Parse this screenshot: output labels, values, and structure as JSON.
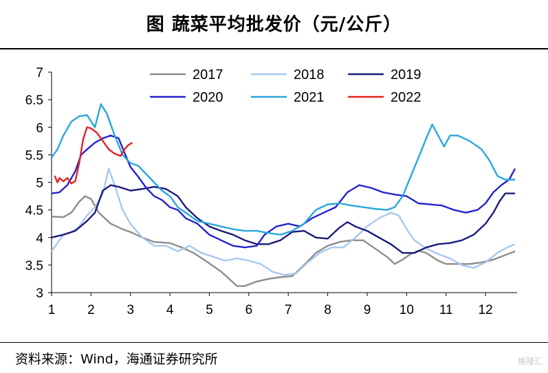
{
  "header": {
    "title": "图  蔬菜平均批发价（元/公斤）"
  },
  "footer": {
    "source": "资料来源：Wind，海通证券研究所",
    "watermark": "格隆汇"
  },
  "chart_data": {
    "type": "line",
    "title": "图  蔬菜平均批发价（元/公斤）",
    "xlabel": "",
    "ylabel": "",
    "x_ticks": [
      "1",
      "2",
      "3",
      "4",
      "5",
      "6",
      "7",
      "8",
      "9",
      "10",
      "11",
      "12"
    ],
    "y_ticks": [
      "3",
      "3.5",
      "4",
      "4.5",
      "5",
      "5.5",
      "6",
      "6.5",
      "7"
    ],
    "xlim": [
      1,
      12.8
    ],
    "ylim": [
      3,
      7
    ],
    "grid": false,
    "legend_position": "top",
    "series": [
      {
        "name": "2017",
        "color": "#8c8c8c",
        "points": [
          [
            1.0,
            4.38
          ],
          [
            1.3,
            4.37
          ],
          [
            1.5,
            4.45
          ],
          [
            1.7,
            4.65
          ],
          [
            1.85,
            4.75
          ],
          [
            2.0,
            4.7
          ],
          [
            2.2,
            4.45
          ],
          [
            2.5,
            4.25
          ],
          [
            2.8,
            4.15
          ],
          [
            3.0,
            4.1
          ],
          [
            3.3,
            4.0
          ],
          [
            3.6,
            3.92
          ],
          [
            4.0,
            3.9
          ],
          [
            4.3,
            3.82
          ],
          [
            4.6,
            3.72
          ],
          [
            4.9,
            3.58
          ],
          [
            5.1,
            3.48
          ],
          [
            5.3,
            3.38
          ],
          [
            5.5,
            3.25
          ],
          [
            5.7,
            3.12
          ],
          [
            5.9,
            3.12
          ],
          [
            6.2,
            3.2
          ],
          [
            6.5,
            3.25
          ],
          [
            6.8,
            3.28
          ],
          [
            7.1,
            3.3
          ],
          [
            7.4,
            3.5
          ],
          [
            7.7,
            3.72
          ],
          [
            8.0,
            3.85
          ],
          [
            8.3,
            3.92
          ],
          [
            8.6,
            3.95
          ],
          [
            8.9,
            3.95
          ],
          [
            9.1,
            3.85
          ],
          [
            9.3,
            3.75
          ],
          [
            9.5,
            3.65
          ],
          [
            9.7,
            3.52
          ],
          [
            9.9,
            3.6
          ],
          [
            10.1,
            3.7
          ],
          [
            10.3,
            3.76
          ],
          [
            10.5,
            3.72
          ],
          [
            10.8,
            3.58
          ],
          [
            11.0,
            3.52
          ],
          [
            11.3,
            3.52
          ],
          [
            11.6,
            3.52
          ],
          [
            11.9,
            3.55
          ],
          [
            12.2,
            3.6
          ],
          [
            12.5,
            3.68
          ],
          [
            12.75,
            3.75
          ]
        ]
      },
      {
        "name": "2018",
        "color": "#a6c8ef",
        "points": [
          [
            1.0,
            3.75
          ],
          [
            1.1,
            3.85
          ],
          [
            1.3,
            4.05
          ],
          [
            1.5,
            4.1
          ],
          [
            1.7,
            4.2
          ],
          [
            1.9,
            4.4
          ],
          [
            2.1,
            4.55
          ],
          [
            2.3,
            4.8
          ],
          [
            2.45,
            5.25
          ],
          [
            2.6,
            4.95
          ],
          [
            2.8,
            4.5
          ],
          [
            3.0,
            4.25
          ],
          [
            3.3,
            4.0
          ],
          [
            3.6,
            3.85
          ],
          [
            3.9,
            3.85
          ],
          [
            4.2,
            3.75
          ],
          [
            4.5,
            3.85
          ],
          [
            4.8,
            3.72
          ],
          [
            5.1,
            3.65
          ],
          [
            5.4,
            3.58
          ],
          [
            5.7,
            3.62
          ],
          [
            6.0,
            3.58
          ],
          [
            6.3,
            3.52
          ],
          [
            6.6,
            3.38
          ],
          [
            6.9,
            3.32
          ],
          [
            7.2,
            3.35
          ],
          [
            7.5,
            3.55
          ],
          [
            7.8,
            3.72
          ],
          [
            8.1,
            3.82
          ],
          [
            8.4,
            3.82
          ],
          [
            8.7,
            4.0
          ],
          [
            9.0,
            4.2
          ],
          [
            9.3,
            4.35
          ],
          [
            9.6,
            4.45
          ],
          [
            9.8,
            4.4
          ],
          [
            10.0,
            4.15
          ],
          [
            10.2,
            3.95
          ],
          [
            10.5,
            3.8
          ],
          [
            10.8,
            3.7
          ],
          [
            11.1,
            3.62
          ],
          [
            11.4,
            3.5
          ],
          [
            11.7,
            3.45
          ],
          [
            12.0,
            3.55
          ],
          [
            12.3,
            3.72
          ],
          [
            12.55,
            3.82
          ],
          [
            12.75,
            3.88
          ]
        ]
      },
      {
        "name": "2019",
        "color": "#1a1a7a",
        "points": [
          [
            1.0,
            4.0
          ],
          [
            1.3,
            4.05
          ],
          [
            1.6,
            4.12
          ],
          [
            1.9,
            4.3
          ],
          [
            2.1,
            4.45
          ],
          [
            2.3,
            4.85
          ],
          [
            2.5,
            4.95
          ],
          [
            2.7,
            4.92
          ],
          [
            3.0,
            4.85
          ],
          [
            3.3,
            4.88
          ],
          [
            3.6,
            4.92
          ],
          [
            3.9,
            4.88
          ],
          [
            4.2,
            4.75
          ],
          [
            4.4,
            4.55
          ],
          [
            4.7,
            4.35
          ],
          [
            5.0,
            4.2
          ],
          [
            5.3,
            4.12
          ],
          [
            5.6,
            4.05
          ],
          [
            5.9,
            3.95
          ],
          [
            6.2,
            3.88
          ],
          [
            6.5,
            3.88
          ],
          [
            6.8,
            3.95
          ],
          [
            7.1,
            4.1
          ],
          [
            7.4,
            4.12
          ],
          [
            7.7,
            4.0
          ],
          [
            8.0,
            3.98
          ],
          [
            8.3,
            4.18
          ],
          [
            8.5,
            4.28
          ],
          [
            8.7,
            4.2
          ],
          [
            9.0,
            4.12
          ],
          [
            9.3,
            4.0
          ],
          [
            9.6,
            3.88
          ],
          [
            9.9,
            3.72
          ],
          [
            10.2,
            3.72
          ],
          [
            10.5,
            3.82
          ],
          [
            10.8,
            3.88
          ],
          [
            11.1,
            3.9
          ],
          [
            11.4,
            3.95
          ],
          [
            11.7,
            4.05
          ],
          [
            12.0,
            4.25
          ],
          [
            12.2,
            4.45
          ],
          [
            12.35,
            4.65
          ],
          [
            12.5,
            4.8
          ],
          [
            12.75,
            4.8
          ]
        ]
      },
      {
        "name": "2020",
        "color": "#2222cc",
        "points": [
          [
            1.0,
            4.8
          ],
          [
            1.2,
            4.82
          ],
          [
            1.4,
            4.95
          ],
          [
            1.6,
            5.2
          ],
          [
            1.75,
            5.5
          ],
          [
            1.9,
            5.6
          ],
          [
            2.1,
            5.72
          ],
          [
            2.3,
            5.8
          ],
          [
            2.5,
            5.85
          ],
          [
            2.7,
            5.8
          ],
          [
            2.9,
            5.45
          ],
          [
            3.0,
            5.28
          ],
          [
            3.2,
            5.1
          ],
          [
            3.4,
            4.9
          ],
          [
            3.6,
            4.75
          ],
          [
            3.8,
            4.68
          ],
          [
            4.0,
            4.55
          ],
          [
            4.2,
            4.5
          ],
          [
            4.4,
            4.35
          ],
          [
            4.7,
            4.25
          ],
          [
            5.0,
            4.05
          ],
          [
            5.3,
            3.95
          ],
          [
            5.6,
            3.85
          ],
          [
            5.9,
            3.82
          ],
          [
            6.2,
            3.85
          ],
          [
            6.4,
            4.05
          ],
          [
            6.7,
            4.2
          ],
          [
            7.0,
            4.25
          ],
          [
            7.3,
            4.2
          ],
          [
            7.6,
            4.35
          ],
          [
            7.9,
            4.45
          ],
          [
            8.2,
            4.55
          ],
          [
            8.5,
            4.82
          ],
          [
            8.8,
            4.95
          ],
          [
            9.1,
            4.9
          ],
          [
            9.4,
            4.82
          ],
          [
            9.7,
            4.78
          ],
          [
            10.0,
            4.75
          ],
          [
            10.3,
            4.62
          ],
          [
            10.6,
            4.6
          ],
          [
            10.9,
            4.58
          ],
          [
            11.2,
            4.5
          ],
          [
            11.5,
            4.45
          ],
          [
            11.8,
            4.5
          ],
          [
            12.0,
            4.62
          ],
          [
            12.2,
            4.82
          ],
          [
            12.4,
            4.95
          ],
          [
            12.6,
            5.05
          ],
          [
            12.75,
            5.25
          ]
        ]
      },
      {
        "name": "2021",
        "color": "#27a7dc",
        "points": [
          [
            1.0,
            5.45
          ],
          [
            1.15,
            5.6
          ],
          [
            1.3,
            5.85
          ],
          [
            1.5,
            6.1
          ],
          [
            1.7,
            6.2
          ],
          [
            1.9,
            6.22
          ],
          [
            2.1,
            6.0
          ],
          [
            2.25,
            6.42
          ],
          [
            2.4,
            6.25
          ],
          [
            2.6,
            5.85
          ],
          [
            2.8,
            5.5
          ],
          [
            3.0,
            5.35
          ],
          [
            3.2,
            5.3
          ],
          [
            3.4,
            5.15
          ],
          [
            3.6,
            5.0
          ],
          [
            3.8,
            4.85
          ],
          [
            4.0,
            4.75
          ],
          [
            4.2,
            4.55
          ],
          [
            4.4,
            4.45
          ],
          [
            4.7,
            4.3
          ],
          [
            5.0,
            4.25
          ],
          [
            5.3,
            4.2
          ],
          [
            5.6,
            4.15
          ],
          [
            5.9,
            4.12
          ],
          [
            6.2,
            4.12
          ],
          [
            6.5,
            4.08
          ],
          [
            6.8,
            4.05
          ],
          [
            7.1,
            4.12
          ],
          [
            7.4,
            4.25
          ],
          [
            7.7,
            4.5
          ],
          [
            8.0,
            4.6
          ],
          [
            8.3,
            4.62
          ],
          [
            8.6,
            4.58
          ],
          [
            8.9,
            4.55
          ],
          [
            9.2,
            4.52
          ],
          [
            9.5,
            4.5
          ],
          [
            9.7,
            4.55
          ],
          [
            9.9,
            4.75
          ],
          [
            10.1,
            5.1
          ],
          [
            10.3,
            5.45
          ],
          [
            10.5,
            5.8
          ],
          [
            10.65,
            6.05
          ],
          [
            10.8,
            5.85
          ],
          [
            10.95,
            5.65
          ],
          [
            11.1,
            5.85
          ],
          [
            11.3,
            5.85
          ],
          [
            11.6,
            5.75
          ],
          [
            11.9,
            5.6
          ],
          [
            12.1,
            5.4
          ],
          [
            12.3,
            5.12
          ],
          [
            12.5,
            5.05
          ],
          [
            12.75,
            5.05
          ]
        ]
      },
      {
        "name": "2022",
        "color": "#e52020",
        "points": [
          [
            1.08,
            5.12
          ],
          [
            1.15,
            5.0
          ],
          [
            1.2,
            5.08
          ],
          [
            1.3,
            5.02
          ],
          [
            1.4,
            5.08
          ],
          [
            1.5,
            4.98
          ],
          [
            1.6,
            5.02
          ],
          [
            1.7,
            5.35
          ],
          [
            1.8,
            5.78
          ],
          [
            1.9,
            6.0
          ],
          [
            2.0,
            5.98
          ],
          [
            2.15,
            5.9
          ],
          [
            2.3,
            5.75
          ],
          [
            2.45,
            5.6
          ],
          [
            2.6,
            5.52
          ],
          [
            2.75,
            5.48
          ],
          [
            2.85,
            5.6
          ],
          [
            2.95,
            5.68
          ],
          [
            3.05,
            5.72
          ]
        ]
      }
    ]
  }
}
